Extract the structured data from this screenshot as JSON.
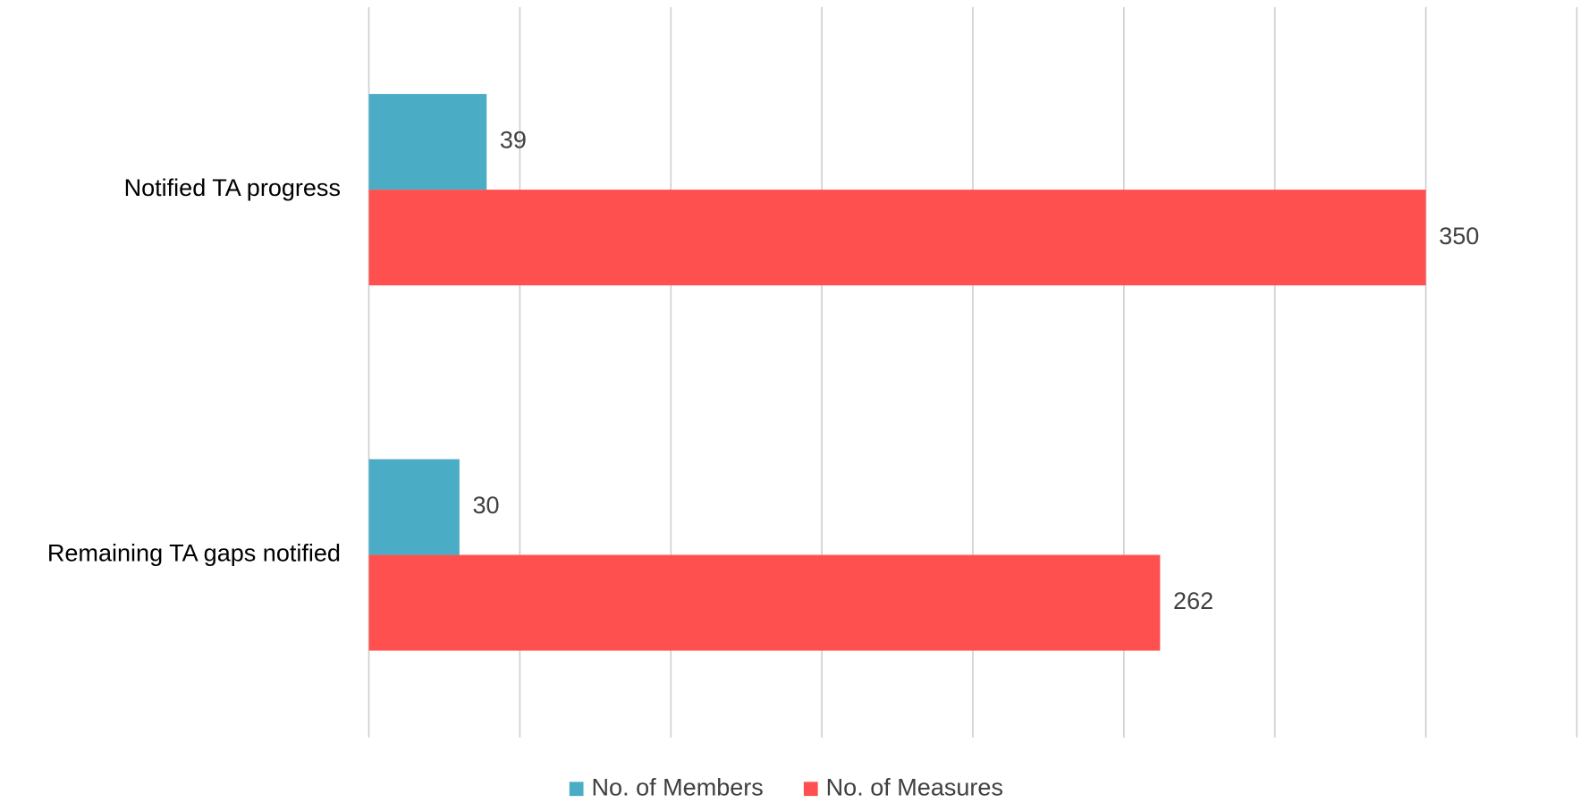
{
  "chart_data": {
    "type": "hbar",
    "categories": [
      "Notified TA progress",
      "Remaining TA gaps notified"
    ],
    "series": [
      {
        "name": "No. of Members",
        "color": "#4bacc6",
        "values": [
          39,
          30
        ]
      },
      {
        "name": "No. of Measures",
        "color": "#ff5050",
        "values": [
          350,
          262
        ]
      }
    ],
    "xlim": [
      0,
      400
    ],
    "xticks": [
      0,
      50,
      100,
      150,
      200,
      250,
      300,
      350,
      400
    ],
    "grid": true,
    "legend": "bottom"
  }
}
